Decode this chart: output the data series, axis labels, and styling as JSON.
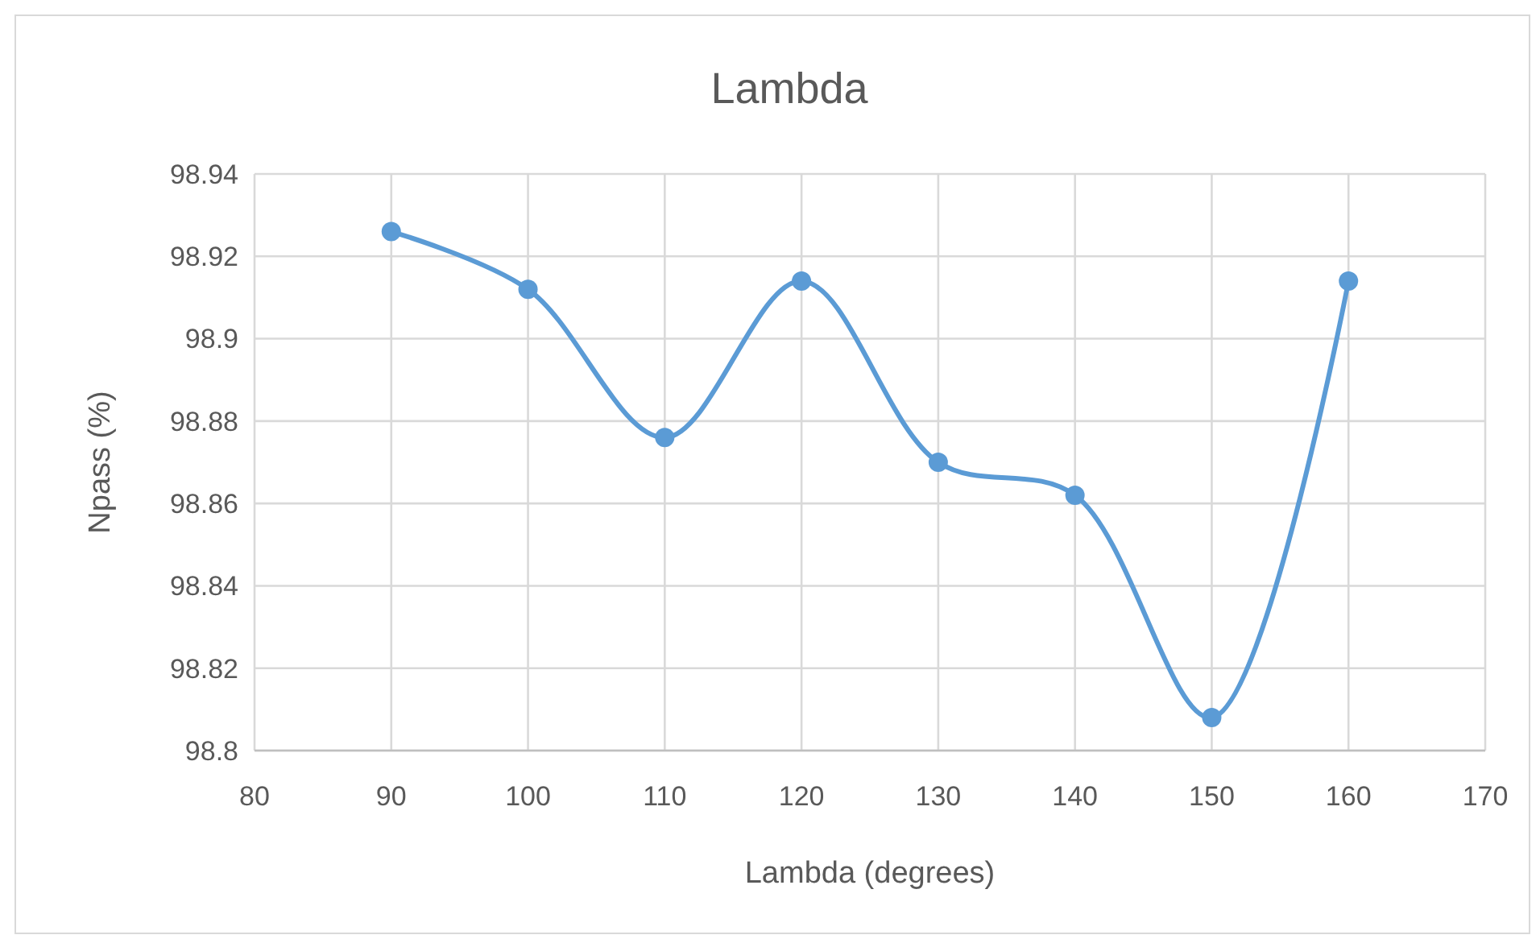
{
  "chart_data": {
    "type": "line",
    "title": "Lambda",
    "xlabel": "Lambda (degrees)",
    "ylabel": "Npass (%)",
    "x": [
      90,
      100,
      110,
      120,
      130,
      140,
      150,
      160
    ],
    "series": [
      {
        "color": "#5b9bd5",
        "values": [
          98.926,
          98.912,
          98.876,
          98.914,
          98.87,
          98.862,
          98.808,
          98.914
        ]
      }
    ],
    "xlim": [
      80,
      170
    ],
    "xticks": [
      80,
      90,
      100,
      110,
      120,
      130,
      140,
      150,
      160,
      170
    ],
    "ylim": [
      98.8,
      98.94
    ],
    "yticks": [
      98.8,
      98.82,
      98.84,
      98.86,
      98.88,
      98.9,
      98.92,
      98.94
    ],
    "grid": true,
    "marker": "circle",
    "line_style": "solid"
  }
}
